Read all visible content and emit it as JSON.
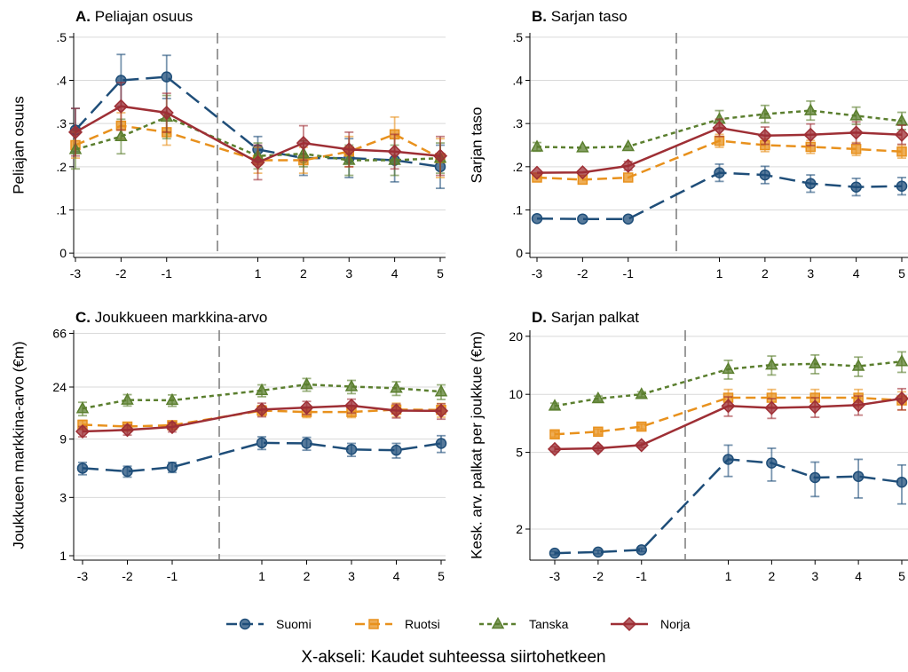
{
  "colors": {
    "Suomi": "#1f4e79",
    "Ruotsi": "#e8911d",
    "Tanska": "#5b7f2f",
    "Norja": "#9e2f35",
    "grid": "#d9d9d9",
    "divider": "#7a7a7a"
  },
  "legend": [
    {
      "name": "Suomi",
      "marker": "circle",
      "dash": "long"
    },
    {
      "name": "Ruotsi",
      "marker": "square",
      "dash": "medium"
    },
    {
      "name": "Tanska",
      "marker": "triangle",
      "dash": "short"
    },
    {
      "name": "Norja",
      "marker": "diamond",
      "dash": "solid"
    }
  ],
  "x_caption": "X-akseli: Kaudet suhteessa siirtohetkeen",
  "chart_data": [
    {
      "type": "line",
      "panel_letter": "A.",
      "title": "Peliajan osuus",
      "ylabel": "Peliajan osuus",
      "x": [
        -3,
        -2,
        -1,
        1,
        2,
        3,
        4,
        5
      ],
      "x_tick_labels": [
        "-3",
        "-2",
        "-1",
        "1",
        "2",
        "3",
        "4",
        "5"
      ],
      "ylim": [
        -0.01,
        0.51
      ],
      "yticks": [
        0,
        0.1,
        0.2,
        0.3,
        0.4,
        0.5
      ],
      "ytick_labels": [
        "0",
        ".1",
        ".2",
        ".3",
        ".4",
        ".5"
      ],
      "yscale": "linear",
      "grid": true,
      "series": [
        {
          "name": "Suomi",
          "values": [
            0.285,
            0.4,
            0.408,
            0.24,
            0.22,
            0.22,
            0.215,
            0.2
          ],
          "err": [
            0.05,
            0.06,
            0.05,
            0.03,
            0.04,
            0.045,
            0.05,
            0.05
          ]
        },
        {
          "name": "Ruotsi",
          "values": [
            0.25,
            0.295,
            0.28,
            0.215,
            0.215,
            0.235,
            0.275,
            0.22
          ],
          "err": [
            0.03,
            0.03,
            0.03,
            0.03,
            0.03,
            0.035,
            0.04,
            0.045
          ]
        },
        {
          "name": "Tanska",
          "values": [
            0.24,
            0.27,
            0.315,
            0.225,
            0.23,
            0.215,
            0.215,
            0.22
          ],
          "err": [
            0.045,
            0.04,
            0.05,
            0.03,
            0.03,
            0.035,
            0.035,
            0.035
          ]
        },
        {
          "name": "Norja",
          "values": [
            0.28,
            0.34,
            0.325,
            0.21,
            0.255,
            0.24,
            0.235,
            0.225
          ],
          "err": [
            0.055,
            0.055,
            0.045,
            0.04,
            0.04,
            0.04,
            0.04,
            0.045
          ]
        }
      ]
    },
    {
      "type": "line",
      "panel_letter": "B.",
      "title": "Sarjan taso",
      "ylabel": "Sarjan taso",
      "x": [
        -3,
        -2,
        -1,
        1,
        2,
        3,
        4,
        5
      ],
      "x_tick_labels": [
        "-3",
        "-2",
        "-1",
        "1",
        "2",
        "3",
        "4",
        "5"
      ],
      "ylim": [
        -0.01,
        0.51
      ],
      "yticks": [
        0,
        0.1,
        0.2,
        0.3,
        0.4,
        0.5
      ],
      "ytick_labels": [
        "0",
        ".1",
        ".2",
        ".3",
        ".4",
        ".5"
      ],
      "yscale": "linear",
      "grid": true,
      "series": [
        {
          "name": "Suomi",
          "values": [
            0.08,
            0.079,
            0.079,
            0.186,
            0.181,
            0.161,
            0.153,
            0.155
          ],
          "err": [
            0,
            0,
            0,
            0.02,
            0.02,
            0.02,
            0.02,
            0.02
          ]
        },
        {
          "name": "Ruotsi",
          "values": [
            0.175,
            0.17,
            0.175,
            0.26,
            0.25,
            0.246,
            0.241,
            0.235
          ],
          "err": [
            0,
            0,
            0,
            0.015,
            0.015,
            0.015,
            0.015,
            0.015
          ]
        },
        {
          "name": "Tanska",
          "values": [
            0.246,
            0.244,
            0.247,
            0.31,
            0.322,
            0.33,
            0.318,
            0.306
          ],
          "err": [
            0.01,
            0,
            0,
            0.02,
            0.02,
            0.022,
            0.02,
            0.02
          ]
        },
        {
          "name": "Norja",
          "values": [
            0.186,
            0.187,
            0.202,
            0.29,
            0.272,
            0.274,
            0.279,
            0.274
          ],
          "err": [
            0,
            0,
            0.01,
            0.02,
            0.02,
            0.025,
            0.025,
            0.022
          ]
        }
      ]
    },
    {
      "type": "line",
      "panel_letter": "C.",
      "title": "Joukkueen markkina-arvo",
      "ylabel": "Joukkueen markkina-arvo (€m)",
      "x": [
        -3,
        -2,
        -1,
        1,
        2,
        3,
        4,
        5
      ],
      "x_tick_labels": [
        "-3",
        "-2",
        "-1",
        "1",
        "2",
        "3",
        "4",
        "5"
      ],
      "ylim": [
        0.92,
        70
      ],
      "yticks": [
        1,
        3,
        9,
        24,
        66
      ],
      "ytick_labels": [
        "1",
        "3",
        "9",
        "24",
        "66"
      ],
      "yscale": "log",
      "grid": true,
      "series": [
        {
          "name": "Suomi",
          "values": [
            5.2,
            4.9,
            5.3,
            8.4,
            8.3,
            7.4,
            7.3,
            8.3
          ],
          "err": [
            0.6,
            0.5,
            0.5,
            1.0,
            1.0,
            0.9,
            1.0,
            1.3
          ]
        },
        {
          "name": "Ruotsi",
          "values": [
            11.8,
            11.4,
            11.7,
            15.4,
            15.0,
            15.0,
            15.7,
            15.6
          ],
          "err": [
            1.0,
            0.8,
            0.8,
            1.5,
            1.5,
            1.5,
            2.0,
            2.0
          ]
        },
        {
          "name": "Tanska",
          "values": [
            16.0,
            18.8,
            18.7,
            22.5,
            25.2,
            24.2,
            23.5,
            22.0
          ],
          "err": [
            2.0,
            2.0,
            2.0,
            2.5,
            3.0,
            3.0,
            3.0,
            3.0
          ]
        },
        {
          "name": "Norja",
          "values": [
            10.4,
            10.7,
            11.3,
            15.7,
            16.3,
            16.9,
            15.4,
            15.3
          ],
          "err": [
            1.0,
            1.0,
            1.0,
            2.0,
            2.0,
            2.2,
            2.0,
            2.2
          ]
        }
      ]
    },
    {
      "type": "line",
      "panel_letter": "D.",
      "title": "Sarjan palkat",
      "ylabel": "Kesk. arv. palkat per joukkue (€m)",
      "x": [
        -3,
        -2,
        -1,
        1,
        2,
        3,
        4,
        5
      ],
      "x_tick_labels": [
        "-3",
        "-2",
        "-1",
        "1",
        "2",
        "3",
        "4",
        "5"
      ],
      "ylim": [
        1.38,
        21.5
      ],
      "yticks": [
        2,
        5,
        10,
        20
      ],
      "ytick_labels": [
        "2",
        "5",
        "10",
        "20"
      ],
      "yscale": "log",
      "grid": true,
      "series": [
        {
          "name": "Suomi",
          "values": [
            1.5,
            1.52,
            1.56,
            4.6,
            4.4,
            3.7,
            3.75,
            3.5
          ],
          "err": [
            0.03,
            0.03,
            0.03,
            0.85,
            0.85,
            0.75,
            0.85,
            0.8
          ]
        },
        {
          "name": "Ruotsi",
          "values": [
            6.2,
            6.4,
            6.8,
            9.6,
            9.6,
            9.6,
            9.6,
            9.3
          ],
          "err": [
            0.2,
            0.2,
            0.2,
            1.0,
            1.0,
            1.0,
            1.0,
            1.0
          ]
        },
        {
          "name": "Tanska",
          "values": [
            8.7,
            9.5,
            10.0,
            13.5,
            14.2,
            14.4,
            14.0,
            14.8
          ],
          "err": [
            0.3,
            0.3,
            0.3,
            1.5,
            1.6,
            1.6,
            1.6,
            1.8
          ]
        },
        {
          "name": "Norja",
          "values": [
            5.2,
            5.25,
            5.45,
            8.7,
            8.5,
            8.6,
            8.8,
            9.5
          ],
          "err": [
            0.15,
            0.15,
            0.15,
            1.0,
            1.0,
            1.0,
            1.0,
            1.2
          ]
        }
      ]
    }
  ]
}
